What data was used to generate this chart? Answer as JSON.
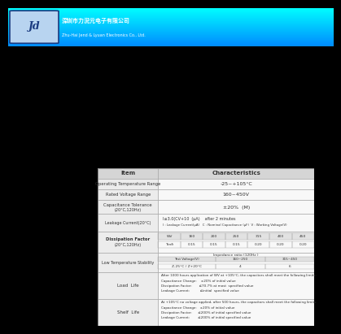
{
  "header_text_cn": "深圳市力淣元电子有限公司",
  "header_text_en": "Zhu-Hai Jend & Lyuan Electronics Co., Ltd.",
  "logo_text": "Jd",
  "body_bg": "#000000",
  "table_bg_light": "#eeeeee",
  "table_bg_dark": "#e0e0e0",
  "cell_bg": "#f4f4f4",
  "line_color": "#aaaaaa",
  "text_color": "#333333",
  "header_row_bg": "#e8e8e8",
  "col_div": 0.28,
  "voltages": [
    "WV",
    "160",
    "200",
    "250",
    "315",
    "400",
    "450"
  ],
  "tan_vals": [
    "Tanδ",
    "0.15",
    "0.15",
    "0.15",
    "0.20",
    "0.20",
    "0.20"
  ],
  "load_life_lines": [
    "After 1000 hours application of WV at +105°C, the capacitors shall meet the following limits:",
    "Capacitance Change:    ±20% of initial value",
    "Dissipation Factor:       ≤70.7% at most  specified value",
    "Leakage Current:          ≤initial  specified value"
  ],
  "shelf_life_lines": [
    "At +105°C no voltage applied, after 500 hours, the capacitors shall meet the following limits.",
    "Capacitance Change:   ±20% of initial value",
    "Dissipation Factor:      ≤200% of initial specified value",
    "Leakage Current:        ≤200% of initial specified value"
  ]
}
